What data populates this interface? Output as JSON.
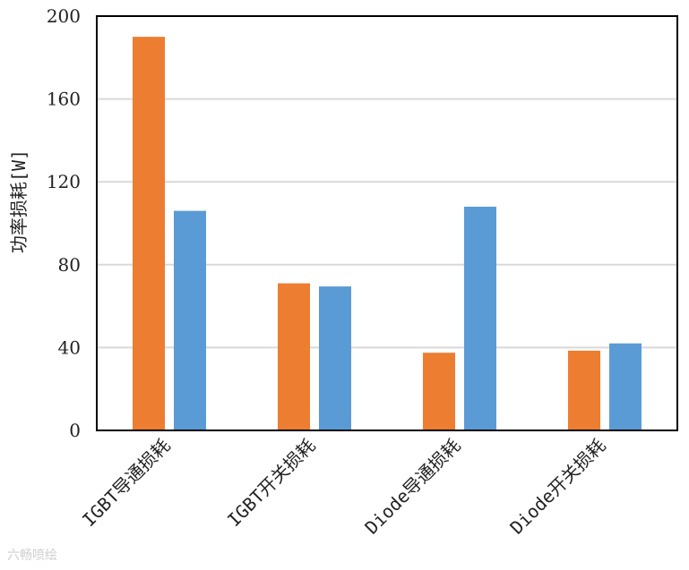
{
  "chart_data": {
    "type": "bar",
    "categories": [
      "IGBT导通损耗",
      "IGBT开关损耗",
      "Diode导通损耗",
      "Diode开关损耗"
    ],
    "series": [
      {
        "values": [
          190,
          71,
          37.5,
          38.5
        ],
        "color": "#ED7D31"
      },
      {
        "values": [
          106,
          69.5,
          108,
          42
        ],
        "color": "#5B9BD5"
      }
    ],
    "ylabel": "功率损耗[W]",
    "ylim": [
      0,
      200
    ],
    "yticks": [
      0,
      40,
      80,
      120,
      160,
      200
    ],
    "grid": true,
    "gridColor": "#d9d9d9",
    "axisColor": "#000000"
  },
  "watermark": "六畅喷绘"
}
